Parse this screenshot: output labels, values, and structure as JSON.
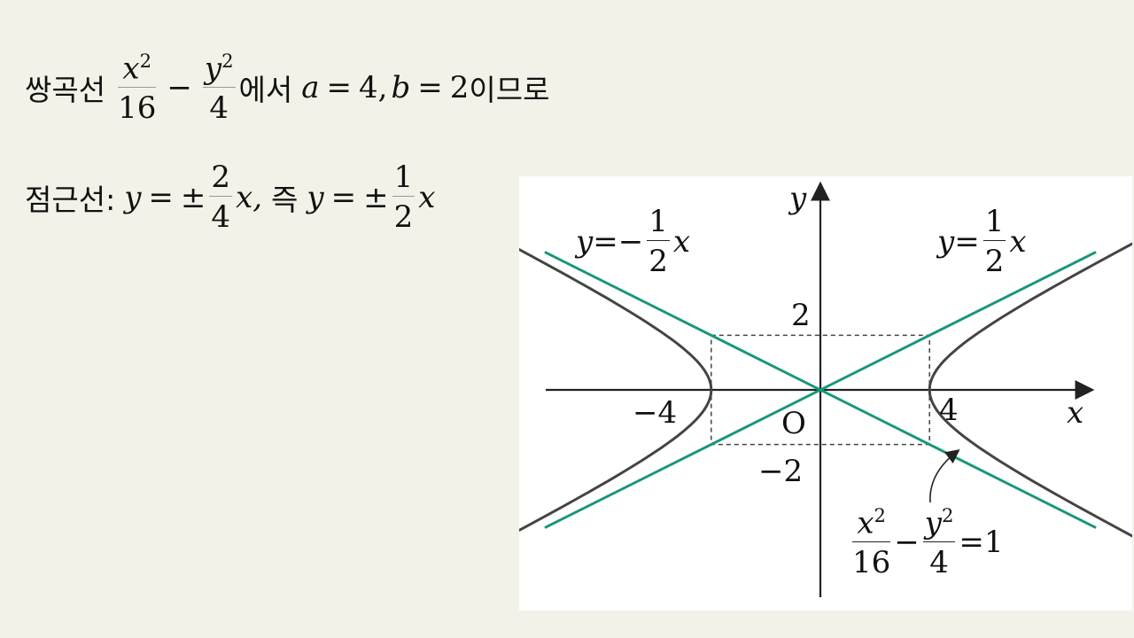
{
  "line1": {
    "prefix": "쌍곡선",
    "f1_num_var": "x",
    "f1_num_exp": "2",
    "f1_den": "16",
    "minus": "−",
    "f2_num_var": "y",
    "f2_num_exp": "2",
    "f2_den": "4",
    "mid": "에서",
    "a_var": "a",
    "eq1": "=",
    "a_val": "4,",
    "b_var": "b",
    "eq2": "=",
    "b_val": "2",
    "suffix": "이므로"
  },
  "line2": {
    "prefix": "점근선:",
    "y1": "y",
    "eq1": "=",
    "pm1": "±",
    "f1_num": "2",
    "f1_den": "4",
    "x1": "x,",
    "mid": "즉",
    "y2": "y",
    "eq2": "=",
    "pm2": "±",
    "f2_num": "1",
    "f2_den": "2",
    "x2": "x"
  },
  "figure": {
    "colors": {
      "asymptote": "#16977a",
      "curve": "#444444",
      "axis": "#222222",
      "dashed": "#444444"
    },
    "a": 4,
    "b": 2,
    "axis_x": "x",
    "axis_y": "y",
    "origin": "O",
    "tick_x_pos": "4",
    "tick_x_neg": "−4",
    "tick_y_pos": "2",
    "tick_y_neg": "−2",
    "asym_left": {
      "y": "y",
      "eq": "=",
      "sign": "−",
      "num": "1",
      "den": "2",
      "x": "x"
    },
    "asym_right": {
      "y": "y",
      "eq": "=",
      "num": "1",
      "den": "2",
      "x": "x"
    },
    "equation": {
      "f1_num_var": "x",
      "f1_num_exp": "2",
      "f1_den": "16",
      "minus": "−",
      "f2_num_var": "y",
      "f2_num_exp": "2",
      "f2_den": "4",
      "eq": "=",
      "rhs": "1"
    }
  }
}
